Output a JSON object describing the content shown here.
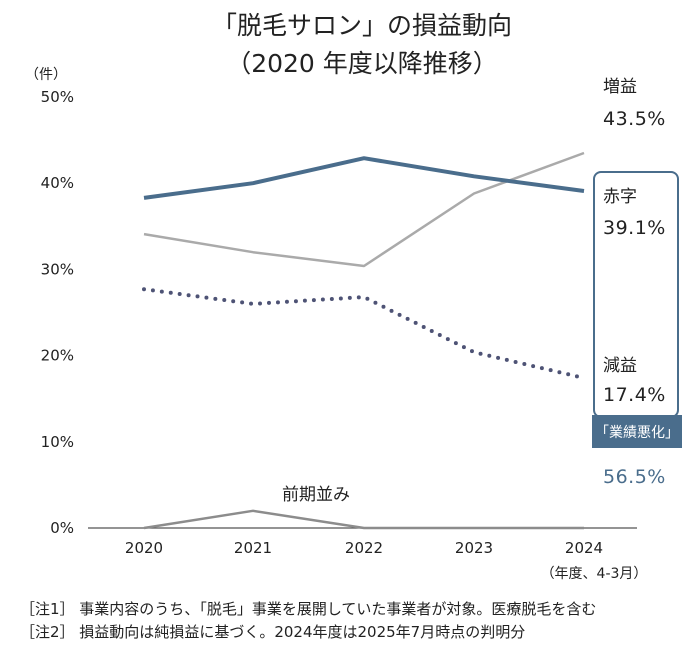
{
  "title": [
    "「脱毛サロン」の損益動向",
    "（2020 年度以降推移）"
  ],
  "notes": [
    "［注1］ 事業内容のうち、「脱毛」事業を展開していた事業者が対象。医療脱毛を含む",
    "［注2］ 損益動向は純損益に基づく。2024年度は2025年7月時点の判明分"
  ],
  "colors": {
    "increase": "#aaaaaa",
    "deficit": "#4a6d8c",
    "decrease": "#4e5375",
    "flat": "#8c8c8c",
    "badge": "#4a6d8c",
    "axis": "#555555"
  },
  "chart_data": {
    "type": "line",
    "categories": [
      "2020",
      "2021",
      "2022",
      "2023",
      "2024"
    ],
    "yunit": "（件）",
    "xunit": "（年度、4-3月）",
    "ylim": [
      0,
      50
    ],
    "yticks": [
      "0%",
      "10%",
      "20%",
      "30%",
      "40%",
      "50%"
    ],
    "grid": false,
    "series": [
      {
        "key": "increase",
        "name": "増益",
        "values": [
          34.1,
          32.0,
          30.4,
          38.8,
          43.5
        ],
        "style": "solid",
        "value_label": "43.5%"
      },
      {
        "key": "deficit",
        "name": "赤字",
        "values": [
          38.3,
          40.0,
          42.9,
          40.8,
          39.1
        ],
        "style": "solid-thick",
        "value_label": "39.1%"
      },
      {
        "key": "decrease",
        "name": "減益",
        "values": [
          27.7,
          26.0,
          26.8,
          20.4,
          17.4
        ],
        "style": "dotted",
        "value_label": "17.4%"
      },
      {
        "key": "flat",
        "name": "前期並み",
        "values": [
          0.0,
          2.0,
          0.0,
          0.0,
          0.0
        ],
        "style": "solid",
        "value_label": ""
      }
    ],
    "annotation": {
      "label": "「業績悪化」",
      "value": "56.5%"
    }
  }
}
